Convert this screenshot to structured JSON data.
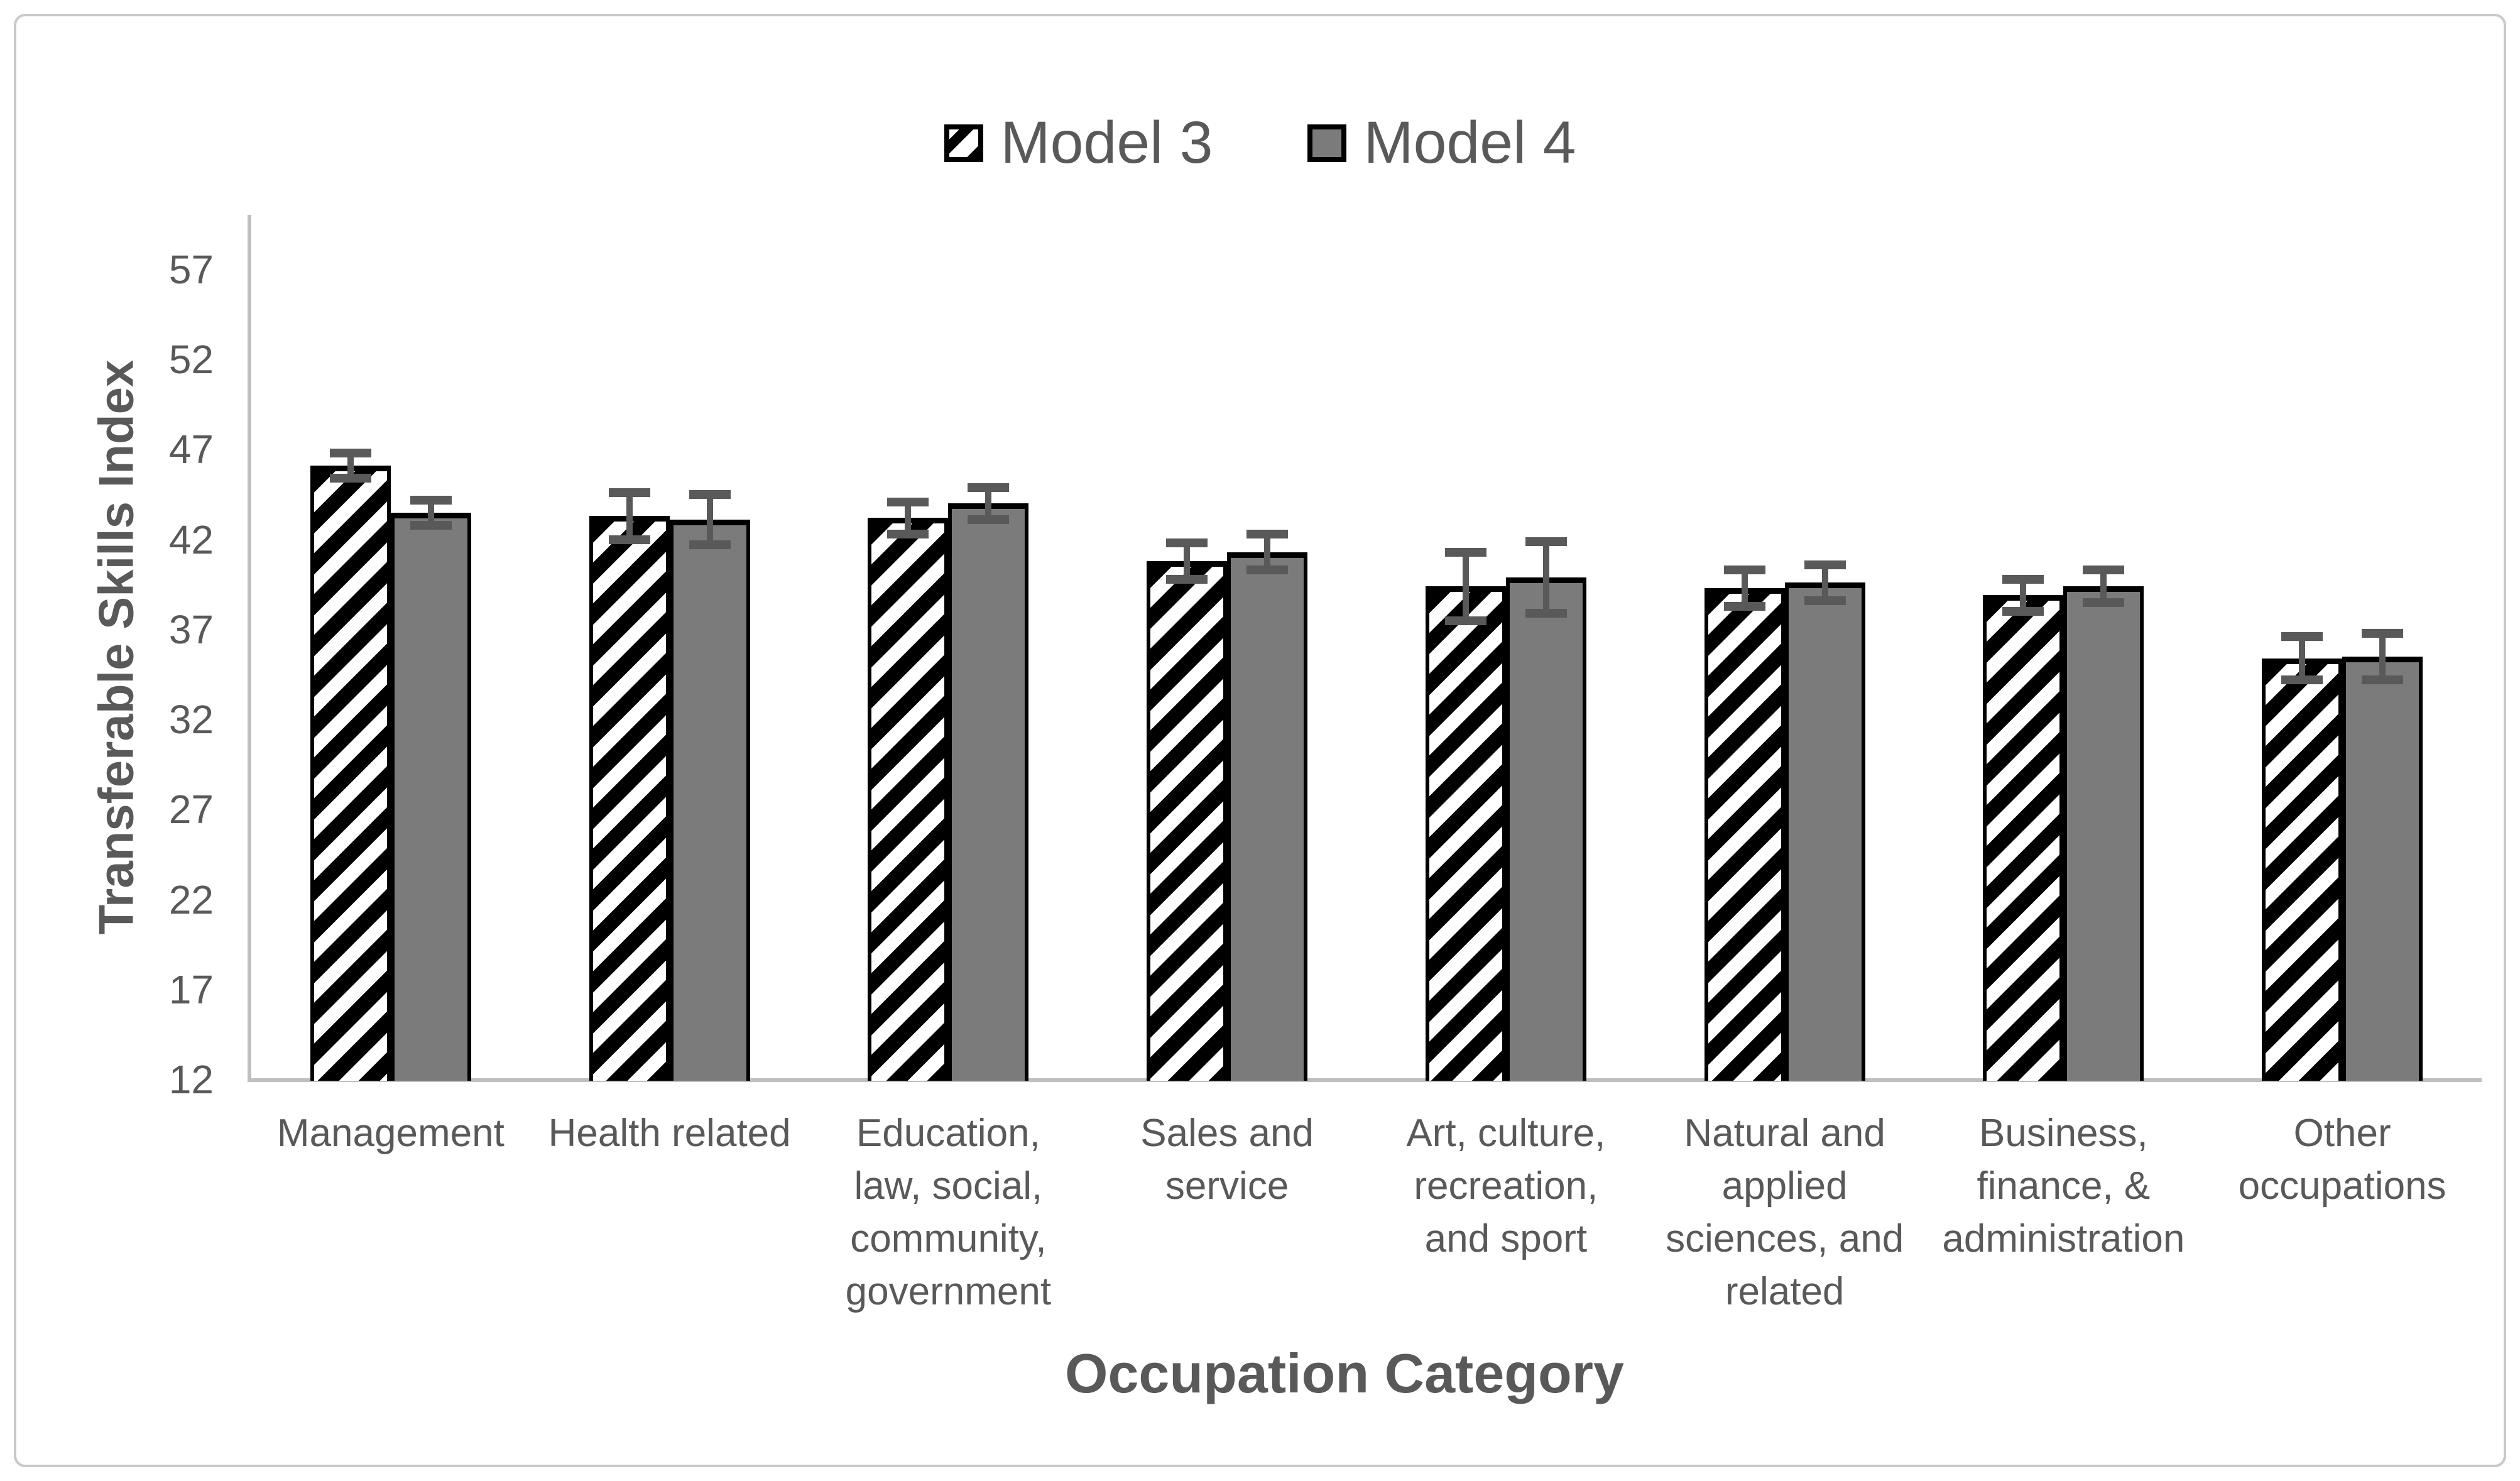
{
  "colors": {
    "bar_gray": "#7b7b7b",
    "text": "#595959",
    "axis_line": "#bfbfbf",
    "figure_border": "#c9c9c9",
    "error_bar": "#595959",
    "bar_border": "#000000"
  },
  "chart_data": {
    "type": "bar",
    "title": "",
    "xlabel": "Occupation Category",
    "ylabel": "Transferable Skills Index",
    "ylim": [
      12,
      57
    ],
    "ytick_step": 5,
    "yticks": [
      57,
      52,
      47,
      42,
      37,
      32,
      27,
      22,
      17,
      12
    ],
    "grid": false,
    "legend_position": "top-center",
    "categories": [
      "Management",
      "Health related",
      "Education, law, social, community, government",
      "Sales and service",
      "Art, culture, recreation, and sport",
      "Natural and applied sciences, and related",
      "Business, finance, & administration",
      "Other occupations"
    ],
    "series": [
      {
        "name": "Model 3",
        "style": "hatched",
        "values": [
          46.1,
          43.3,
          43.2,
          40.8,
          39.4,
          39.3,
          38.9,
          35.4
        ],
        "errors": [
          0.7,
          1.3,
          0.9,
          1.0,
          1.9,
          1.0,
          0.9,
          1.2
        ]
      },
      {
        "name": "Model 4",
        "style": "solid-gray",
        "values": [
          43.5,
          43.1,
          44.0,
          41.3,
          39.9,
          39.6,
          39.4,
          35.5
        ],
        "errors": [
          0.7,
          1.4,
          0.9,
          1.0,
          2.0,
          1.0,
          0.9,
          1.3
        ]
      }
    ]
  }
}
